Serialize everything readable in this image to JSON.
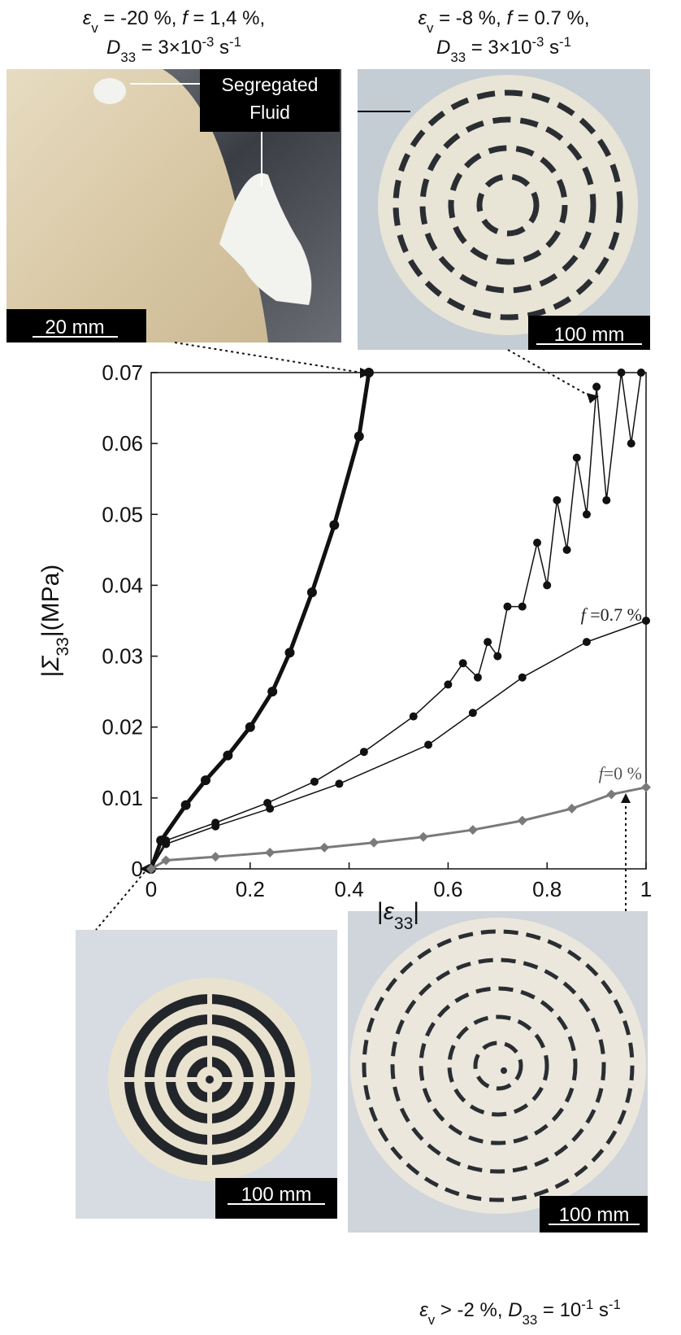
{
  "chart_data": {
    "type": "line",
    "captions": {
      "top_left": [
        [
          {
            "text": "ε",
            "style": "it"
          },
          {
            "text": "v",
            "style": "sub"
          },
          {
            "text": " = -20 %, "
          },
          {
            "text": "f",
            "style": "it"
          },
          {
            "text": " = 1,4 %,"
          }
        ],
        [
          {
            "text": "D",
            "style": "it"
          },
          {
            "text": "33",
            "style": "sub"
          },
          {
            "text": " = 3×10"
          },
          {
            "text": "-3",
            "style": "sup"
          },
          {
            "text": " s"
          },
          {
            "text": "-1",
            "style": "sup"
          }
        ]
      ],
      "top_right": [
        [
          {
            "text": "ε",
            "style": "it"
          },
          {
            "text": "v",
            "style": "sub"
          },
          {
            "text": " = -8 %, "
          },
          {
            "text": "f",
            "style": "it"
          },
          {
            "text": " = 0.7 %,"
          }
        ],
        [
          {
            "text": "D",
            "style": "it"
          },
          {
            "text": "33",
            "style": "sub"
          },
          {
            "text": " = 3×10"
          },
          {
            "text": "-3",
            "style": "sup"
          },
          {
            "text": " s"
          },
          {
            "text": "-1",
            "style": "sup"
          }
        ]
      ],
      "bottom": [
        [
          {
            "text": "ε",
            "style": "it"
          },
          {
            "text": "v",
            "style": "sub"
          },
          {
            "text": " > -2 %, "
          },
          {
            "text": "D",
            "style": "it"
          },
          {
            "text": "33",
            "style": "sub"
          },
          {
            "text": " = 10"
          },
          {
            "text": "-1",
            "style": "sup"
          },
          {
            "text": " s"
          },
          {
            "text": "-1",
            "style": "sup"
          }
        ]
      ]
    },
    "photo_labels": {
      "fluid": [
        "Segregated",
        "Fluid"
      ],
      "scale_top_left": "20 mm",
      "scale_top_right": "100 mm",
      "scale_bottom_left": "100 mm",
      "scale_bottom_right": "100 mm"
    },
    "x_label": [
      {
        "text": "|"
      },
      {
        "text": "ε",
        "style": "it"
      },
      {
        "text": "33",
        "style": "sub"
      },
      {
        "text": "|"
      }
    ],
    "y_label": [
      {
        "text": "|"
      },
      {
        "text": "Σ",
        "style": "it"
      },
      {
        "text": "33",
        "style": "sub"
      },
      {
        "text": "|(MPa)"
      }
    ],
    "annotations": [
      [
        {
          "text": "f",
          "style": "it"
        },
        {
          "text": " =0.7 %"
        }
      ],
      [
        {
          "text": "f",
          "style": "it"
        },
        {
          "text": "=0 %"
        }
      ]
    ],
    "xlim": [
      0,
      1
    ],
    "xticks": [
      0,
      0.2,
      0.4,
      0.6,
      0.8,
      1
    ],
    "ylim": [
      0,
      0.07
    ],
    "yticks": [
      0,
      0.01,
      0.02,
      0.03,
      0.04,
      0.05,
      0.06,
      0.07
    ],
    "series": [
      {
        "color": "#111111",
        "width": 5,
        "marker": "circle",
        "x": [
          0,
          0.02,
          0.07,
          0.11,
          0.155,
          0.2,
          0.245,
          0.28,
          0.325,
          0.37,
          0.42,
          0.44
        ],
        "values": [
          0,
          0.004,
          0.009,
          0.0125,
          0.016,
          0.02,
          0.025,
          0.0305,
          0.039,
          0.0485,
          0.061,
          0.07
        ]
      },
      {
        "color": "#111111",
        "width": 1.5,
        "marker": "circle",
        "x": [
          0,
          0.03,
          0.13,
          0.235,
          0.33,
          0.43,
          0.53,
          0.6,
          0.63,
          0.66,
          0.68,
          0.7,
          0.72,
          0.75,
          0.78,
          0.8,
          0.82,
          0.84,
          0.86,
          0.88,
          0.9,
          0.92,
          0.95,
          0.97,
          0.99
        ],
        "values": [
          0,
          0.004,
          0.0065,
          0.0093,
          0.0123,
          0.0165,
          0.0215,
          0.026,
          0.029,
          0.027,
          0.032,
          0.03,
          0.037,
          0.037,
          0.046,
          0.04,
          0.052,
          0.045,
          0.058,
          0.05,
          0.068,
          0.052,
          0.07,
          0.06,
          0.07
        ]
      },
      {
        "color": "#111111",
        "width": 1.5,
        "marker": "circle",
        "x": [
          0,
          0.03,
          0.13,
          0.24,
          0.38,
          0.56,
          0.65,
          0.75,
          0.88,
          1
        ],
        "values": [
          0,
          0.0035,
          0.006,
          0.0085,
          0.012,
          0.0175,
          0.022,
          0.027,
          0.032,
          0.035
        ]
      },
      {
        "color": "#7a7a7a",
        "width": 3,
        "marker": "diamond",
        "x": [
          0,
          0.03,
          0.13,
          0.24,
          0.35,
          0.45,
          0.55,
          0.65,
          0.75,
          0.85,
          0.93,
          1
        ],
        "values": [
          0,
          0.0012,
          0.0017,
          0.0023,
          0.003,
          0.0037,
          0.0045,
          0.0055,
          0.0068,
          0.0085,
          0.0105,
          0.0115
        ]
      }
    ]
  }
}
